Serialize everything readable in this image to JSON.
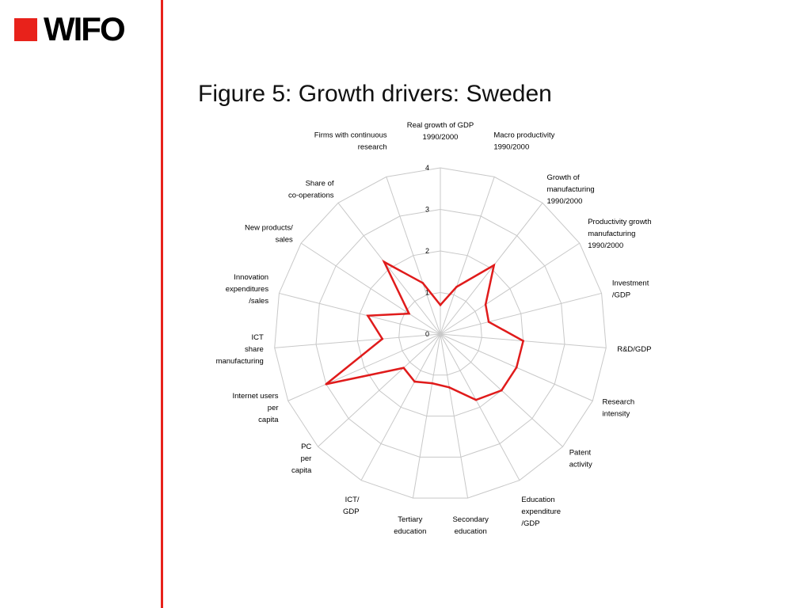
{
  "logo": {
    "text": "WIFO",
    "square_color": "#e8221b"
  },
  "divider_color": "#e8221b",
  "title": "Figure 5: Growth drivers: Sweden",
  "chart_data": {
    "type": "radar",
    "title": "Figure 5: Growth drivers: Sweden",
    "categories": [
      "Real growth of GDP 1990/2000",
      "Macro productivity 1990/2000",
      "Growth of manufacturing 1990/2000",
      "Productivity growth manufacturing 1990/2000",
      "Investment /GDP",
      "R&D/GDP",
      "Research intensity",
      "Patent activity",
      "Education expenditure /GDP",
      "Secondary education",
      "Tertiary education",
      "ICT/ GDP",
      "PC per capita",
      "Internet users per capita",
      "ICT share manufacturing",
      "Innovation expenditures /sales",
      "New products/ sales",
      "Share of co-operations",
      "Firms with continuous research"
    ],
    "label_lines": [
      [
        "Real growth of GDP",
        "1990/2000"
      ],
      [
        "Macro productivity",
        "1990/2000"
      ],
      [
        "Growth of",
        "manufacturing",
        "1990/2000"
      ],
      [
        "Productivity growth",
        "manufacturing",
        "1990/2000"
      ],
      [
        "Investment",
        "/GDP"
      ],
      [
        "R&D/GDP"
      ],
      [
        "Research",
        "intensity"
      ],
      [
        "Patent",
        "activity"
      ],
      [
        "Education",
        "expenditure",
        "/GDP"
      ],
      [
        "Secondary",
        "education"
      ],
      [
        "Tertiary",
        "education"
      ],
      [
        "ICT/",
        "GDP"
      ],
      [
        "PC",
        "per",
        "capita"
      ],
      [
        "Internet users",
        "per",
        "capita"
      ],
      [
        "ICT",
        "share",
        "manufacturing"
      ],
      [
        "Innovation",
        "expenditures",
        "/sales"
      ],
      [
        "New products/",
        "sales"
      ],
      [
        "Share of",
        "co-operations"
      ],
      [
        "Firms with continuous",
        "research"
      ]
    ],
    "series": [
      {
        "values": [
          0.7,
          1.2,
          2.1,
          1.3,
          1.2,
          2.0,
          2.0,
          2.0,
          1.8,
          1.3,
          1.2,
          1.3,
          1.2,
          3.0,
          1.4,
          1.8,
          0.9,
          2.2,
          1.3
        ]
      }
    ],
    "rlim": [
      0,
      4
    ],
    "ticks": [
      "0",
      "1",
      "2",
      "3",
      "4"
    ],
    "grid": true,
    "legend": "none",
    "line_color": "#e01b1b",
    "grid_color": "#c8c8c8"
  }
}
